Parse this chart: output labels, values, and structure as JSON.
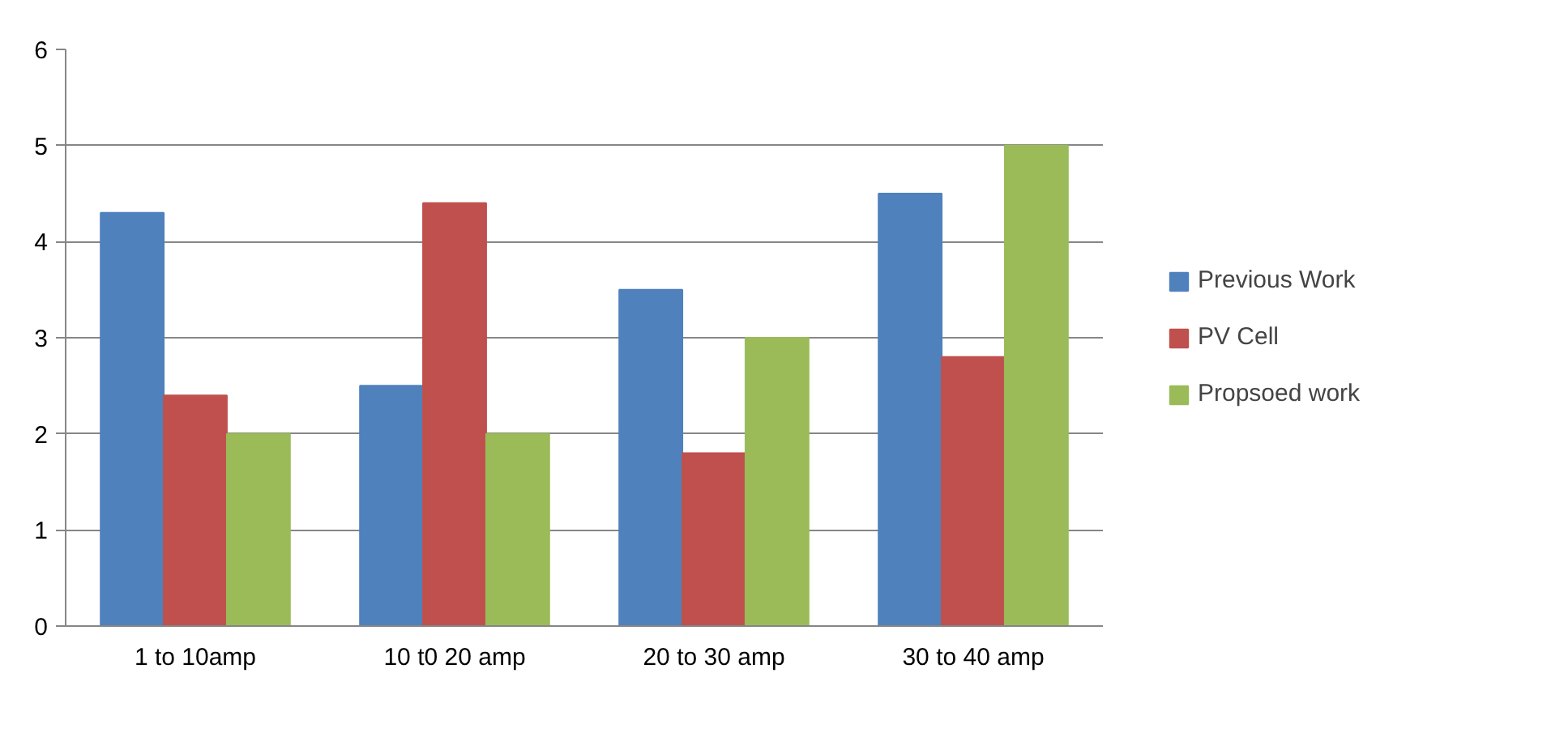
{
  "chart_data": {
    "type": "bar",
    "categories": [
      "1 to 10amp",
      "10 t0 20 amp",
      "20 to 30 amp",
      "30 to 40 amp"
    ],
    "series": [
      {
        "name": "Previous Work",
        "color": "#4f81bd",
        "values": [
          4.3,
          2.5,
          3.5,
          4.5
        ]
      },
      {
        "name": "PV Cell",
        "color": "#c0504d",
        "values": [
          2.4,
          4.4,
          1.8,
          2.8
        ]
      },
      {
        "name": "Propsoed work",
        "color": "#9bbb59",
        "values": [
          2,
          2,
          3,
          5
        ]
      }
    ],
    "ylim": [
      0,
      6
    ],
    "yticks": [
      0,
      1,
      2,
      3,
      4,
      5,
      6
    ],
    "grid": "y",
    "legend": "right"
  }
}
